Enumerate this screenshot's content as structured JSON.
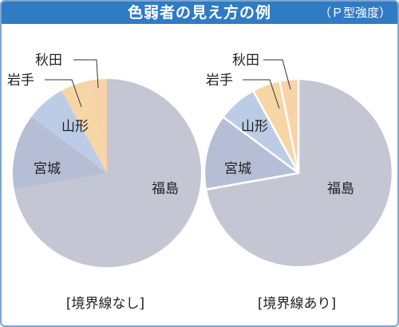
{
  "header": {
    "title": "色弱者の見え方の例",
    "subtitle": "（Ｐ型強度）"
  },
  "colors": {
    "header_bg": "#2f7bc4",
    "fukushima": "#c4c6d3",
    "miyagi": "#b5bed4",
    "yamagata": "#bccce6",
    "iwate": "#f7d6a6",
    "akita": "#f8d3a8",
    "divider": "#ffffff"
  },
  "chart_data": [
    {
      "type": "pie",
      "caption": "[境界線なし]",
      "borders": false,
      "slices": [
        {
          "label": "福島",
          "value": 72.2
        },
        {
          "label": "宮城",
          "value": 13.0
        },
        {
          "label": "山形",
          "value": 6.8
        },
        {
          "label": "岩手",
          "value": 4.8
        },
        {
          "label": "秋田",
          "value": 3.2
        }
      ]
    },
    {
      "type": "pie",
      "caption": "[境界線あり]",
      "borders": true,
      "slices": [
        {
          "label": "福島",
          "value": 72.2
        },
        {
          "label": "宮城",
          "value": 13.0
        },
        {
          "label": "山形",
          "value": 6.8
        },
        {
          "label": "岩手",
          "value": 4.8
        },
        {
          "label": "秋田",
          "value": 3.2
        }
      ]
    }
  ]
}
